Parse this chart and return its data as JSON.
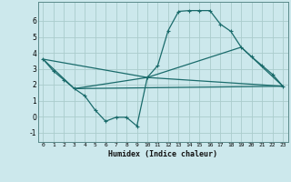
{
  "title": "",
  "xlabel": "Humidex (Indice chaleur)",
  "ylabel": "",
  "background_color": "#cce8ec",
  "grid_color": "#aacccc",
  "line_color": "#1a6b6b",
  "xlim": [
    -0.5,
    23.5
  ],
  "ylim": [
    -1.6,
    7.2
  ],
  "yticks": [
    -1,
    0,
    1,
    2,
    3,
    4,
    5,
    6
  ],
  "xticks": [
    0,
    1,
    2,
    3,
    4,
    5,
    6,
    7,
    8,
    9,
    10,
    11,
    12,
    13,
    14,
    15,
    16,
    17,
    18,
    19,
    20,
    21,
    22,
    23
  ],
  "line1_x": [
    0,
    1,
    2,
    3,
    4,
    5,
    6,
    7,
    8,
    9,
    10,
    11,
    12,
    13,
    14,
    15,
    16,
    17,
    18,
    19,
    20,
    21,
    22,
    23
  ],
  "line1_y": [
    3.6,
    2.85,
    2.3,
    1.75,
    1.3,
    0.4,
    -0.3,
    -0.05,
    -0.05,
    -0.6,
    2.45,
    3.2,
    5.4,
    6.6,
    6.65,
    6.65,
    6.65,
    5.8,
    5.35,
    4.35,
    3.75,
    3.2,
    2.65,
    1.9
  ],
  "line2_x": [
    0,
    3,
    10,
    23
  ],
  "line2_y": [
    3.6,
    1.75,
    2.45,
    1.9
  ],
  "line3_x": [
    0,
    10,
    19,
    23
  ],
  "line3_y": [
    3.6,
    2.45,
    4.35,
    1.9
  ],
  "line4_x": [
    3,
    23
  ],
  "line4_y": [
    1.75,
    1.9
  ]
}
